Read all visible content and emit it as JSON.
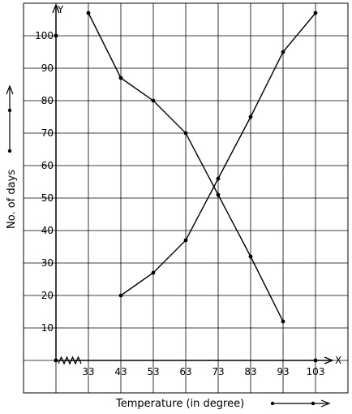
{
  "chart_data": {
    "type": "line",
    "xlabel": "Temperature (in degree)",
    "ylabel": "No. of days",
    "x_axis_letter": "X",
    "y_axis_letter": "Y",
    "x_ticks": [
      33,
      43,
      53,
      63,
      73,
      83,
      93,
      103
    ],
    "y_ticks": [
      10,
      20,
      30,
      40,
      50,
      60,
      70,
      80,
      90,
      100
    ],
    "xlim": [
      23,
      108
    ],
    "ylim": [
      0,
      110
    ],
    "grid": true,
    "series": [
      {
        "x": [
          33,
          43,
          53,
          63,
          73,
          83,
          93
        ],
        "y": [
          107,
          87,
          80,
          70,
          51,
          32,
          12
        ]
      },
      {
        "x": [
          43,
          53,
          63,
          73,
          83,
          93,
          103
        ],
        "y": [
          20,
          27,
          37,
          56,
          75,
          95,
          107
        ]
      }
    ],
    "colors": {
      "line": "#000000",
      "grid": "#000000",
      "background": "#ffffff"
    }
  }
}
